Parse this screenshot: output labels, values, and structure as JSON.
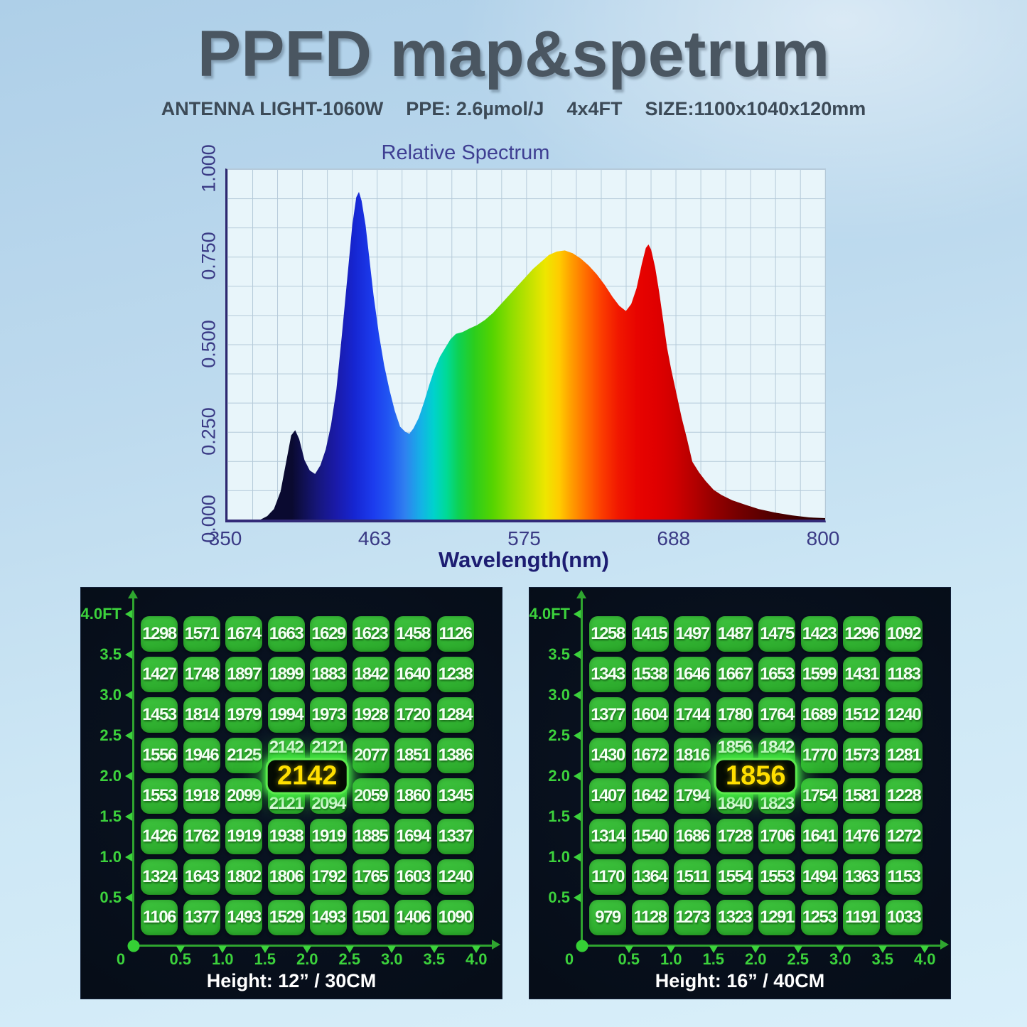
{
  "header": {
    "title": "PPFD map&spetrum",
    "specs": [
      "ANTENNA LIGHT-1060W",
      "PPE: 2.6µmol/J",
      "4x4FT",
      "SIZE:1100x1040x120mm"
    ]
  },
  "chart_data": {
    "type": "area",
    "title": "Relative Spectrum",
    "xlabel": "Wavelength(nm)",
    "ylabel": "",
    "xlim": [
      350,
      800
    ],
    "ylim": [
      0,
      1
    ],
    "grid": true,
    "legend_position": "none",
    "x_tick_labels": [
      "350",
      "463",
      "575",
      "688",
      "800"
    ],
    "y_tick_labels": [
      "1.000",
      "0.750",
      "0.500",
      "0.250",
      "0.000"
    ],
    "series": [
      {
        "name": "relative spectral power",
        "x": [
          375,
          380,
          385,
          390,
          394,
          398,
          401,
          404,
          408,
          412,
          416,
          420,
          424,
          428,
          432,
          436,
          440,
          444,
          447,
          449,
          451,
          454,
          457,
          460,
          464,
          468,
          472,
          476,
          480,
          484,
          487,
          490,
          494,
          498,
          502,
          506,
          510,
          514,
          518,
          522,
          527,
          532,
          538,
          544,
          550,
          556,
          562,
          568,
          574,
          580,
          586,
          592,
          598,
          604,
          610,
          616,
          622,
          628,
          634,
          640,
          645,
          650,
          654,
          658,
          662,
          665,
          667,
          669,
          672,
          675,
          678,
          681,
          684,
          688,
          692,
          696,
          700,
          705,
          710,
          716,
          722,
          730,
          740,
          750,
          762,
          775,
          788,
          800
        ],
        "y": [
          0.0,
          0.01,
          0.03,
          0.08,
          0.16,
          0.24,
          0.255,
          0.23,
          0.17,
          0.14,
          0.13,
          0.155,
          0.2,
          0.27,
          0.37,
          0.52,
          0.68,
          0.84,
          0.92,
          0.935,
          0.91,
          0.84,
          0.74,
          0.64,
          0.53,
          0.44,
          0.37,
          0.31,
          0.265,
          0.25,
          0.245,
          0.26,
          0.29,
          0.335,
          0.385,
          0.43,
          0.465,
          0.49,
          0.515,
          0.53,
          0.535,
          0.545,
          0.555,
          0.57,
          0.59,
          0.615,
          0.64,
          0.665,
          0.69,
          0.715,
          0.735,
          0.755,
          0.765,
          0.768,
          0.76,
          0.745,
          0.725,
          0.7,
          0.67,
          0.635,
          0.61,
          0.595,
          0.615,
          0.66,
          0.73,
          0.775,
          0.785,
          0.77,
          0.72,
          0.65,
          0.57,
          0.49,
          0.43,
          0.36,
          0.29,
          0.23,
          0.165,
          0.135,
          0.11,
          0.085,
          0.07,
          0.055,
          0.042,
          0.03,
          0.02,
          0.012,
          0.006,
          0.004
        ]
      }
    ],
    "spectrum_gradient": [
      {
        "nm": 375,
        "c": "#0a0a30"
      },
      {
        "nm": 395,
        "c": "#16167a"
      },
      {
        "nm": 410,
        "c": "#1a1aa8"
      },
      {
        "nm": 425,
        "c": "#1626d2"
      },
      {
        "nm": 440,
        "c": "#1c3cee"
      },
      {
        "nm": 452,
        "c": "#2156f2"
      },
      {
        "nm": 465,
        "c": "#2f80f0"
      },
      {
        "nm": 478,
        "c": "#14b2e6"
      },
      {
        "nm": 488,
        "c": "#00d2cc"
      },
      {
        "nm": 498,
        "c": "#00da98"
      },
      {
        "nm": 508,
        "c": "#0ed152"
      },
      {
        "nm": 520,
        "c": "#2bcd1d"
      },
      {
        "nm": 535,
        "c": "#55d400"
      },
      {
        "nm": 550,
        "c": "#8fdd00"
      },
      {
        "nm": 565,
        "c": "#c4e200"
      },
      {
        "nm": 577,
        "c": "#eee600"
      },
      {
        "nm": 588,
        "c": "#ffcc00"
      },
      {
        "nm": 598,
        "c": "#ff9c00"
      },
      {
        "nm": 610,
        "c": "#ff6a00"
      },
      {
        "nm": 622,
        "c": "#fb3c00"
      },
      {
        "nm": 635,
        "c": "#f11800"
      },
      {
        "nm": 650,
        "c": "#e80400"
      },
      {
        "nm": 665,
        "c": "#e00000"
      },
      {
        "nm": 680,
        "c": "#d00000"
      },
      {
        "nm": 695,
        "c": "#b50000"
      },
      {
        "nm": 710,
        "c": "#970000"
      },
      {
        "nm": 730,
        "c": "#760000"
      },
      {
        "nm": 755,
        "c": "#550000"
      },
      {
        "nm": 780,
        "c": "#3a0000"
      },
      {
        "nm": 800,
        "c": "#2d0000"
      }
    ]
  },
  "ppfd_maps": [
    {
      "id": "map-height-30cm",
      "caption": "Height: 12” / 30CM",
      "center_value": "2142",
      "origin_label": "0",
      "y_labels": [
        "4.0FT",
        "3.5",
        "3.0",
        "2.5",
        "2.0",
        "1.5",
        "1.0",
        "0.5"
      ],
      "x_labels": [
        "0.5",
        "1.0",
        "1.5",
        "2.0",
        "2.5",
        "3.0",
        "3.5",
        "4.0"
      ],
      "rows": [
        [
          1298,
          1571,
          1674,
          1663,
          1629,
          1623,
          1458,
          1126
        ],
        [
          1427,
          1748,
          1897,
          1899,
          1883,
          1842,
          1640,
          1238
        ],
        [
          1453,
          1814,
          1979,
          1994,
          1973,
          1928,
          1720,
          1284
        ],
        [
          1556,
          1946,
          2125,
          2142,
          2121,
          2077,
          1851,
          1386
        ],
        [
          1553,
          1918,
          2099,
          2121,
          2094,
          2059,
          1860,
          1345
        ],
        [
          1426,
          1762,
          1919,
          1938,
          1919,
          1885,
          1694,
          1337
        ],
        [
          1324,
          1643,
          1802,
          1806,
          1792,
          1765,
          1603,
          1240
        ],
        [
          1106,
          1377,
          1493,
          1529,
          1493,
          1501,
          1406,
          1090
        ]
      ]
    },
    {
      "id": "map-height-40cm",
      "caption": "Height: 16” / 40CM",
      "center_value": "1856",
      "origin_label": "0",
      "y_labels": [
        "4.0FT",
        "3.5",
        "3.0",
        "2.5",
        "2.0",
        "1.5",
        "1.0",
        "0.5"
      ],
      "x_labels": [
        "0.5",
        "1.0",
        "1.5",
        "2.0",
        "2.5",
        "3.0",
        "3.5",
        "4.0"
      ],
      "rows": [
        [
          1258,
          1415,
          1497,
          1487,
          1475,
          1423,
          1296,
          1092
        ],
        [
          1343,
          1538,
          1646,
          1667,
          1653,
          1599,
          1431,
          1183
        ],
        [
          1377,
          1604,
          1744,
          1780,
          1764,
          1689,
          1512,
          1240
        ],
        [
          1430,
          1672,
          1816,
          1856,
          1842,
          1770,
          1573,
          1281
        ],
        [
          1407,
          1642,
          1794,
          1840,
          1823,
          1754,
          1581,
          1228
        ],
        [
          1314,
          1540,
          1686,
          1728,
          1706,
          1641,
          1476,
          1272
        ],
        [
          1170,
          1364,
          1511,
          1554,
          1553,
          1494,
          1363,
          1153
        ],
        [
          979,
          1128,
          1273,
          1323,
          1291,
          1253,
          1191,
          1033
        ]
      ]
    }
  ],
  "colors": {
    "title_text": "#4a5661",
    "subtitle_text": "#3c4a57",
    "chart_title_text": "#3e3e92",
    "chart_axis_text": "#3a3a85",
    "chart_axis_line": "#2e2870",
    "plot_background": "#e8f5fa",
    "plot_gridline": "#b5cad9",
    "panel_background": "#060d18",
    "map_axis_green": "#3cd23c",
    "cell_green": "#2fb42f",
    "cell_text": "#ffffff",
    "badge_background": "#040b03",
    "badge_text": "#ffdf00",
    "badge_glow": "#46f046"
  }
}
